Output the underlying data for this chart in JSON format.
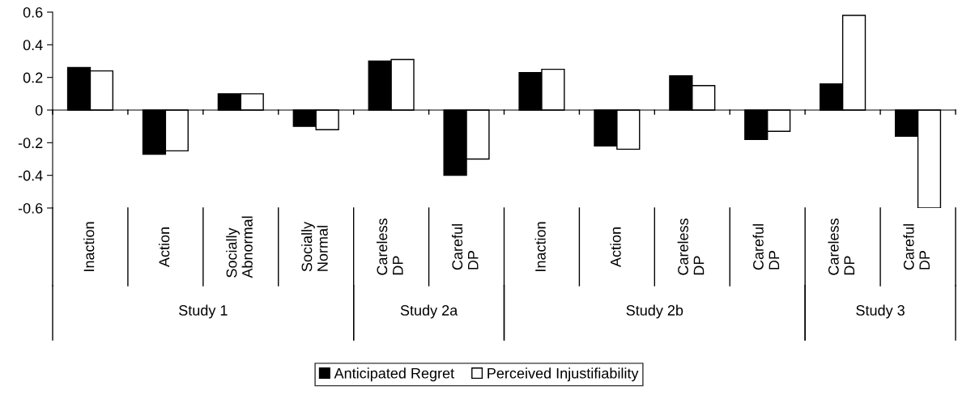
{
  "chart_data": {
    "type": "bar",
    "categories": [
      "Inaction",
      "Action",
      "Socially\nAbnormal",
      "Socially\nNormal",
      "Careless\nDP",
      "Careful\nDP",
      "Inaction",
      "Action",
      "Careless\nDP",
      "Careful\nDP",
      "Careless\nDP",
      "Careful\nDP"
    ],
    "series": [
      {
        "name": "Anticipated Regret",
        "color": "#000000",
        "values": [
          0.26,
          -0.27,
          0.1,
          -0.1,
          0.3,
          -0.4,
          0.23,
          -0.22,
          0.21,
          -0.18,
          0.16,
          -0.16
        ]
      },
      {
        "name": "Perceived Injustifiability",
        "color": "#ffffff",
        "values": [
          0.24,
          -0.25,
          0.1,
          -0.12,
          0.31,
          -0.3,
          0.25,
          -0.24,
          0.15,
          -0.13,
          0.58,
          -0.6
        ]
      }
    ],
    "annotations": [
      "Study 1",
      "Study 2a",
      "Study 2b",
      "Study 3"
    ],
    "ylim": [
      -0.6,
      0.6
    ],
    "yticks": [
      0.6,
      0.4,
      0.2,
      0,
      {
        "value": -0.2,
        "label": "-0.2"
      },
      {
        "value": -0.4,
        "label": "-0.4"
      },
      {
        "value": -0.6,
        "label": "-0.6"
      }
    ],
    "legend": "bottom"
  }
}
